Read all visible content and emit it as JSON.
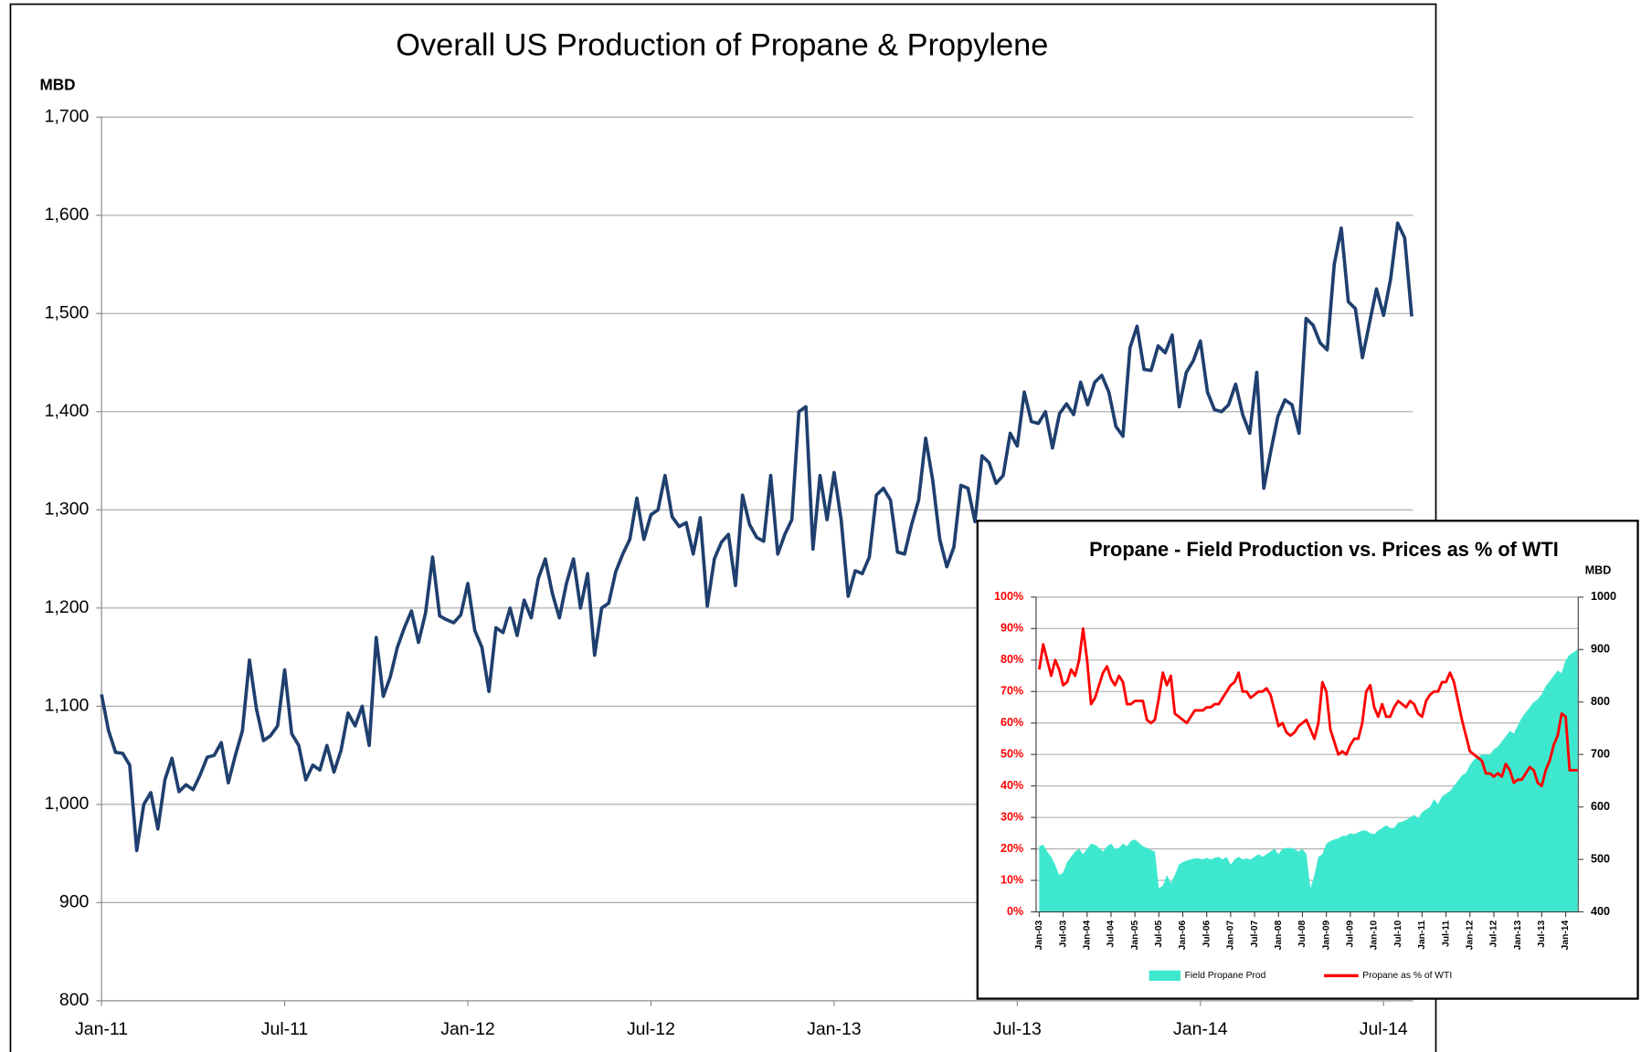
{
  "chart_data": [
    {
      "type": "line",
      "title": "Overall US Production of Propane & Propylene",
      "y_label": "MBD",
      "color": "#1f3f6e",
      "grid": true,
      "categories": [
        "Jan-11",
        null,
        null,
        null,
        null,
        null,
        null,
        null,
        null,
        null,
        null,
        null,
        null,
        null,
        null,
        null,
        null,
        null,
        null,
        null,
        null,
        null,
        null,
        null,
        null,
        null,
        "Jul-11",
        null,
        null,
        null,
        null,
        null,
        null,
        null,
        null,
        null,
        null,
        null,
        null,
        null,
        null,
        null,
        null,
        null,
        null,
        null,
        null,
        null,
        null,
        null,
        null,
        null,
        "Jan-12",
        null,
        null,
        null,
        null,
        null,
        null,
        null,
        null,
        null,
        null,
        null,
        null,
        null,
        null,
        null,
        null,
        null,
        null,
        null,
        null,
        null,
        null,
        null,
        null,
        null,
        "Jul-12",
        null,
        null,
        null,
        null,
        null,
        null,
        null,
        null,
        null,
        null,
        null,
        null,
        null,
        null,
        null,
        null,
        null,
        null,
        null,
        null,
        null,
        null,
        null,
        null,
        null,
        "Jan-13",
        null,
        null,
        null,
        null,
        null,
        null,
        null,
        null,
        null,
        null,
        null,
        null,
        null,
        null,
        null,
        null,
        null,
        null,
        null,
        null,
        null,
        null,
        null,
        null,
        null,
        "Jul-13",
        null,
        null,
        null,
        null,
        null,
        null,
        null,
        null,
        null,
        null,
        null,
        null,
        null,
        null,
        null,
        null,
        null,
        null,
        null,
        null,
        null,
        null,
        null,
        null,
        null,
        "Jan-14",
        null,
        null,
        null,
        null,
        null,
        null,
        null,
        null,
        null,
        null,
        null,
        null,
        null,
        null,
        null,
        null,
        null,
        null,
        null,
        null,
        null,
        null,
        null,
        null,
        null,
        "Jul-14",
        null,
        null,
        null,
        null
      ],
      "values": [
        1112,
        1075,
        1053,
        1052,
        1040,
        953,
        1000,
        1012,
        975,
        1025,
        1047,
        1013,
        1020,
        1015,
        1030,
        1048,
        1050,
        1063,
        1022,
        1050,
        1075,
        1147,
        1097,
        1065,
        1070,
        1080,
        1137,
        1072,
        1060,
        1025,
        1040,
        1035,
        1060,
        1033,
        1055,
        1093,
        1080,
        1100,
        1060,
        1170,
        1110,
        1130,
        1160,
        1180,
        1197,
        1165,
        1195,
        1252,
        1192,
        1188,
        1185,
        1193,
        1225,
        1177,
        1160,
        1115,
        1180,
        1175,
        1200,
        1172,
        1208,
        1190,
        1230,
        1250,
        1215,
        1190,
        1225,
        1250,
        1200,
        1235,
        1152,
        1200,
        1205,
        1237,
        1255,
        1270,
        1312,
        1270,
        1295,
        1300,
        1335,
        1293,
        1283,
        1287,
        1255,
        1292,
        1202,
        1250,
        1267,
        1275,
        1223,
        1315,
        1285,
        1272,
        1268,
        1335,
        1255,
        1275,
        1290,
        1400,
        1405,
        1260,
        1335,
        1290,
        1338,
        1290,
        1212,
        1238,
        1235,
        1252,
        1315,
        1322,
        1310,
        1257,
        1255,
        1285,
        1310,
        1373,
        1330,
        1270,
        1242,
        1262,
        1325,
        1322,
        1288,
        1355,
        1348,
        1327,
        1335,
        1378,
        1365,
        1420,
        1390,
        1388,
        1400,
        1363,
        1398,
        1408,
        1397,
        1430,
        1407,
        1430,
        1437,
        1420,
        1385,
        1375,
        1465,
        1487,
        1443,
        1442,
        1467,
        1460,
        1478,
        1405,
        1440,
        1452,
        1472,
        1420,
        1402,
        1400,
        1407,
        1428,
        1397,
        1378,
        1440,
        1322,
        1360,
        1395,
        1412,
        1407,
        1378,
        1495,
        1488,
        1470,
        1463,
        1550,
        1587,
        1512,
        1505,
        1455,
        1490,
        1525,
        1498,
        1535,
        1592,
        1577,
        1497
      ],
      "ylim": [
        800,
        1700
      ],
      "yticks": [
        800,
        900,
        {
          "value": 1000,
          "label": "1,000"
        },
        {
          "value": 1100,
          "label": "1,100"
        },
        {
          "value": 1200,
          "label": "1,200"
        },
        {
          "value": 1300,
          "label": "1,300"
        },
        {
          "value": 1400,
          "label": "1,400"
        },
        {
          "value": 1500,
          "label": "1,500"
        },
        {
          "value": 1600,
          "label": "1,600"
        },
        {
          "value": 1700,
          "label": "1,700"
        }
      ]
    },
    {
      "type": "combo",
      "title": "Propane  - Field Production vs. Prices as % of WTI",
      "y2_label": "MBD",
      "grid": true,
      "legend": "bottom",
      "categories": [
        "Jan-03",
        null,
        null,
        null,
        null,
        null,
        "Jul-03",
        null,
        null,
        null,
        null,
        null,
        "Jan-04",
        null,
        null,
        null,
        null,
        null,
        "Jul-04",
        null,
        null,
        null,
        null,
        null,
        "Jan-05",
        null,
        null,
        null,
        null,
        null,
        "Jul-05",
        null,
        null,
        null,
        null,
        null,
        "Jan-06",
        null,
        null,
        null,
        null,
        null,
        "Jul-06",
        null,
        null,
        null,
        null,
        null,
        "Jan-07",
        null,
        null,
        null,
        null,
        null,
        "Jul-07",
        null,
        null,
        null,
        null,
        null,
        "Jan-08",
        null,
        null,
        null,
        null,
        null,
        "Jul-08",
        null,
        null,
        null,
        null,
        null,
        "Jan-09",
        null,
        null,
        null,
        null,
        null,
        "Jul-09",
        null,
        null,
        null,
        null,
        null,
        "Jan-10",
        null,
        null,
        null,
        null,
        null,
        "Jul-10",
        null,
        null,
        null,
        null,
        null,
        "Jan-11",
        null,
        null,
        null,
        null,
        null,
        "Jul-11",
        null,
        null,
        null,
        null,
        null,
        "Jan-12",
        null,
        null,
        null,
        null,
        null,
        "Jul-12",
        null,
        null,
        null,
        null,
        null,
        "Jan-13",
        null,
        null,
        null,
        null,
        null,
        "Jul-13",
        null,
        null,
        null,
        null,
        null,
        "Jan-14",
        null,
        null,
        null
      ],
      "series": [
        {
          "name": "Field Propane Prod",
          "type": "area",
          "axis": "y2",
          "color": "#3ee8cf",
          "values": [
            525,
            528,
            515,
            505,
            490,
            470,
            475,
            495,
            505,
            515,
            520,
            510,
            520,
            530,
            528,
            522,
            515,
            525,
            530,
            520,
            522,
            530,
            525,
            535,
            538,
            532,
            525,
            522,
            518,
            515,
            445,
            450,
            470,
            455,
            470,
            490,
            495,
            498,
            500,
            502,
            502,
            500,
            503,
            500,
            503,
            505,
            500,
            505,
            490,
            500,
            505,
            500,
            502,
            500,
            505,
            510,
            505,
            510,
            515,
            520,
            510,
            520,
            522,
            522,
            520,
            515,
            520,
            510,
            445,
            470,
            505,
            510,
            530,
            535,
            538,
            540,
            545,
            545,
            550,
            548,
            552,
            555,
            555,
            550,
            548,
            555,
            560,
            565,
            560,
            560,
            570,
            572,
            575,
            580,
            585,
            578,
            590,
            595,
            600,
            615,
            605,
            620,
            625,
            630,
            640,
            650,
            660,
            665,
            680,
            690,
            695,
            700,
            700,
            700,
            710,
            715,
            725,
            735,
            745,
            740,
            755,
            770,
            780,
            790,
            800,
            805,
            815,
            830,
            840,
            850,
            860,
            855,
            880,
            890,
            895,
            900
          ]
        },
        {
          "name": "Propane as % of WTI",
          "type": "line",
          "color": "#ff0000",
          "values": [
            77,
            85,
            80,
            75,
            80,
            77,
            72,
            73,
            77,
            75,
            80,
            90,
            80,
            66,
            68,
            72,
            76,
            78,
            74,
            72,
            75,
            73,
            66,
            66,
            67,
            67,
            67,
            61,
            60,
            61,
            68,
            76,
            72,
            75,
            63,
            62,
            61,
            60,
            62,
            64,
            64,
            64,
            65,
            65,
            66,
            66,
            68,
            70,
            72,
            73,
            76,
            70,
            70,
            68,
            69,
            70,
            70,
            71,
            69,
            64,
            59,
            60,
            57,
            56,
            57,
            59,
            60,
            61,
            58,
            55,
            60,
            73,
            70,
            58,
            54,
            50,
            51,
            50,
            53,
            55,
            55,
            60,
            70,
            72,
            65,
            62,
            66,
            62,
            62,
            65,
            67,
            66,
            65,
            67,
            66,
            63,
            62,
            67,
            69,
            70,
            70,
            73,
            73,
            76,
            73,
            67,
            61,
            56,
            51,
            50,
            49,
            48,
            44,
            44,
            43,
            44,
            43,
            47,
            45,
            41,
            42,
            42,
            44,
            46,
            45,
            41,
            40,
            45,
            48,
            53,
            56,
            63,
            62,
            45,
            45,
            45
          ]
        }
      ],
      "ylim": [
        0,
        100
      ],
      "yticks": [
        {
          "value": 0,
          "label": "0%"
        },
        {
          "value": 10,
          "label": "10%"
        },
        {
          "value": 20,
          "label": "20%"
        },
        {
          "value": 30,
          "label": "30%"
        },
        {
          "value": 40,
          "label": "40%"
        },
        {
          "value": 50,
          "label": "50%"
        },
        {
          "value": 60,
          "label": "60%"
        },
        {
          "value": 70,
          "label": "70%"
        },
        {
          "value": 80,
          "label": "80%"
        },
        {
          "value": 90,
          "label": "90%"
        },
        {
          "value": 100,
          "label": "100%"
        }
      ],
      "y2lim": [
        400,
        1000
      ],
      "y2ticks": [
        400,
        500,
        600,
        700,
        800,
        900,
        1000
      ]
    }
  ]
}
